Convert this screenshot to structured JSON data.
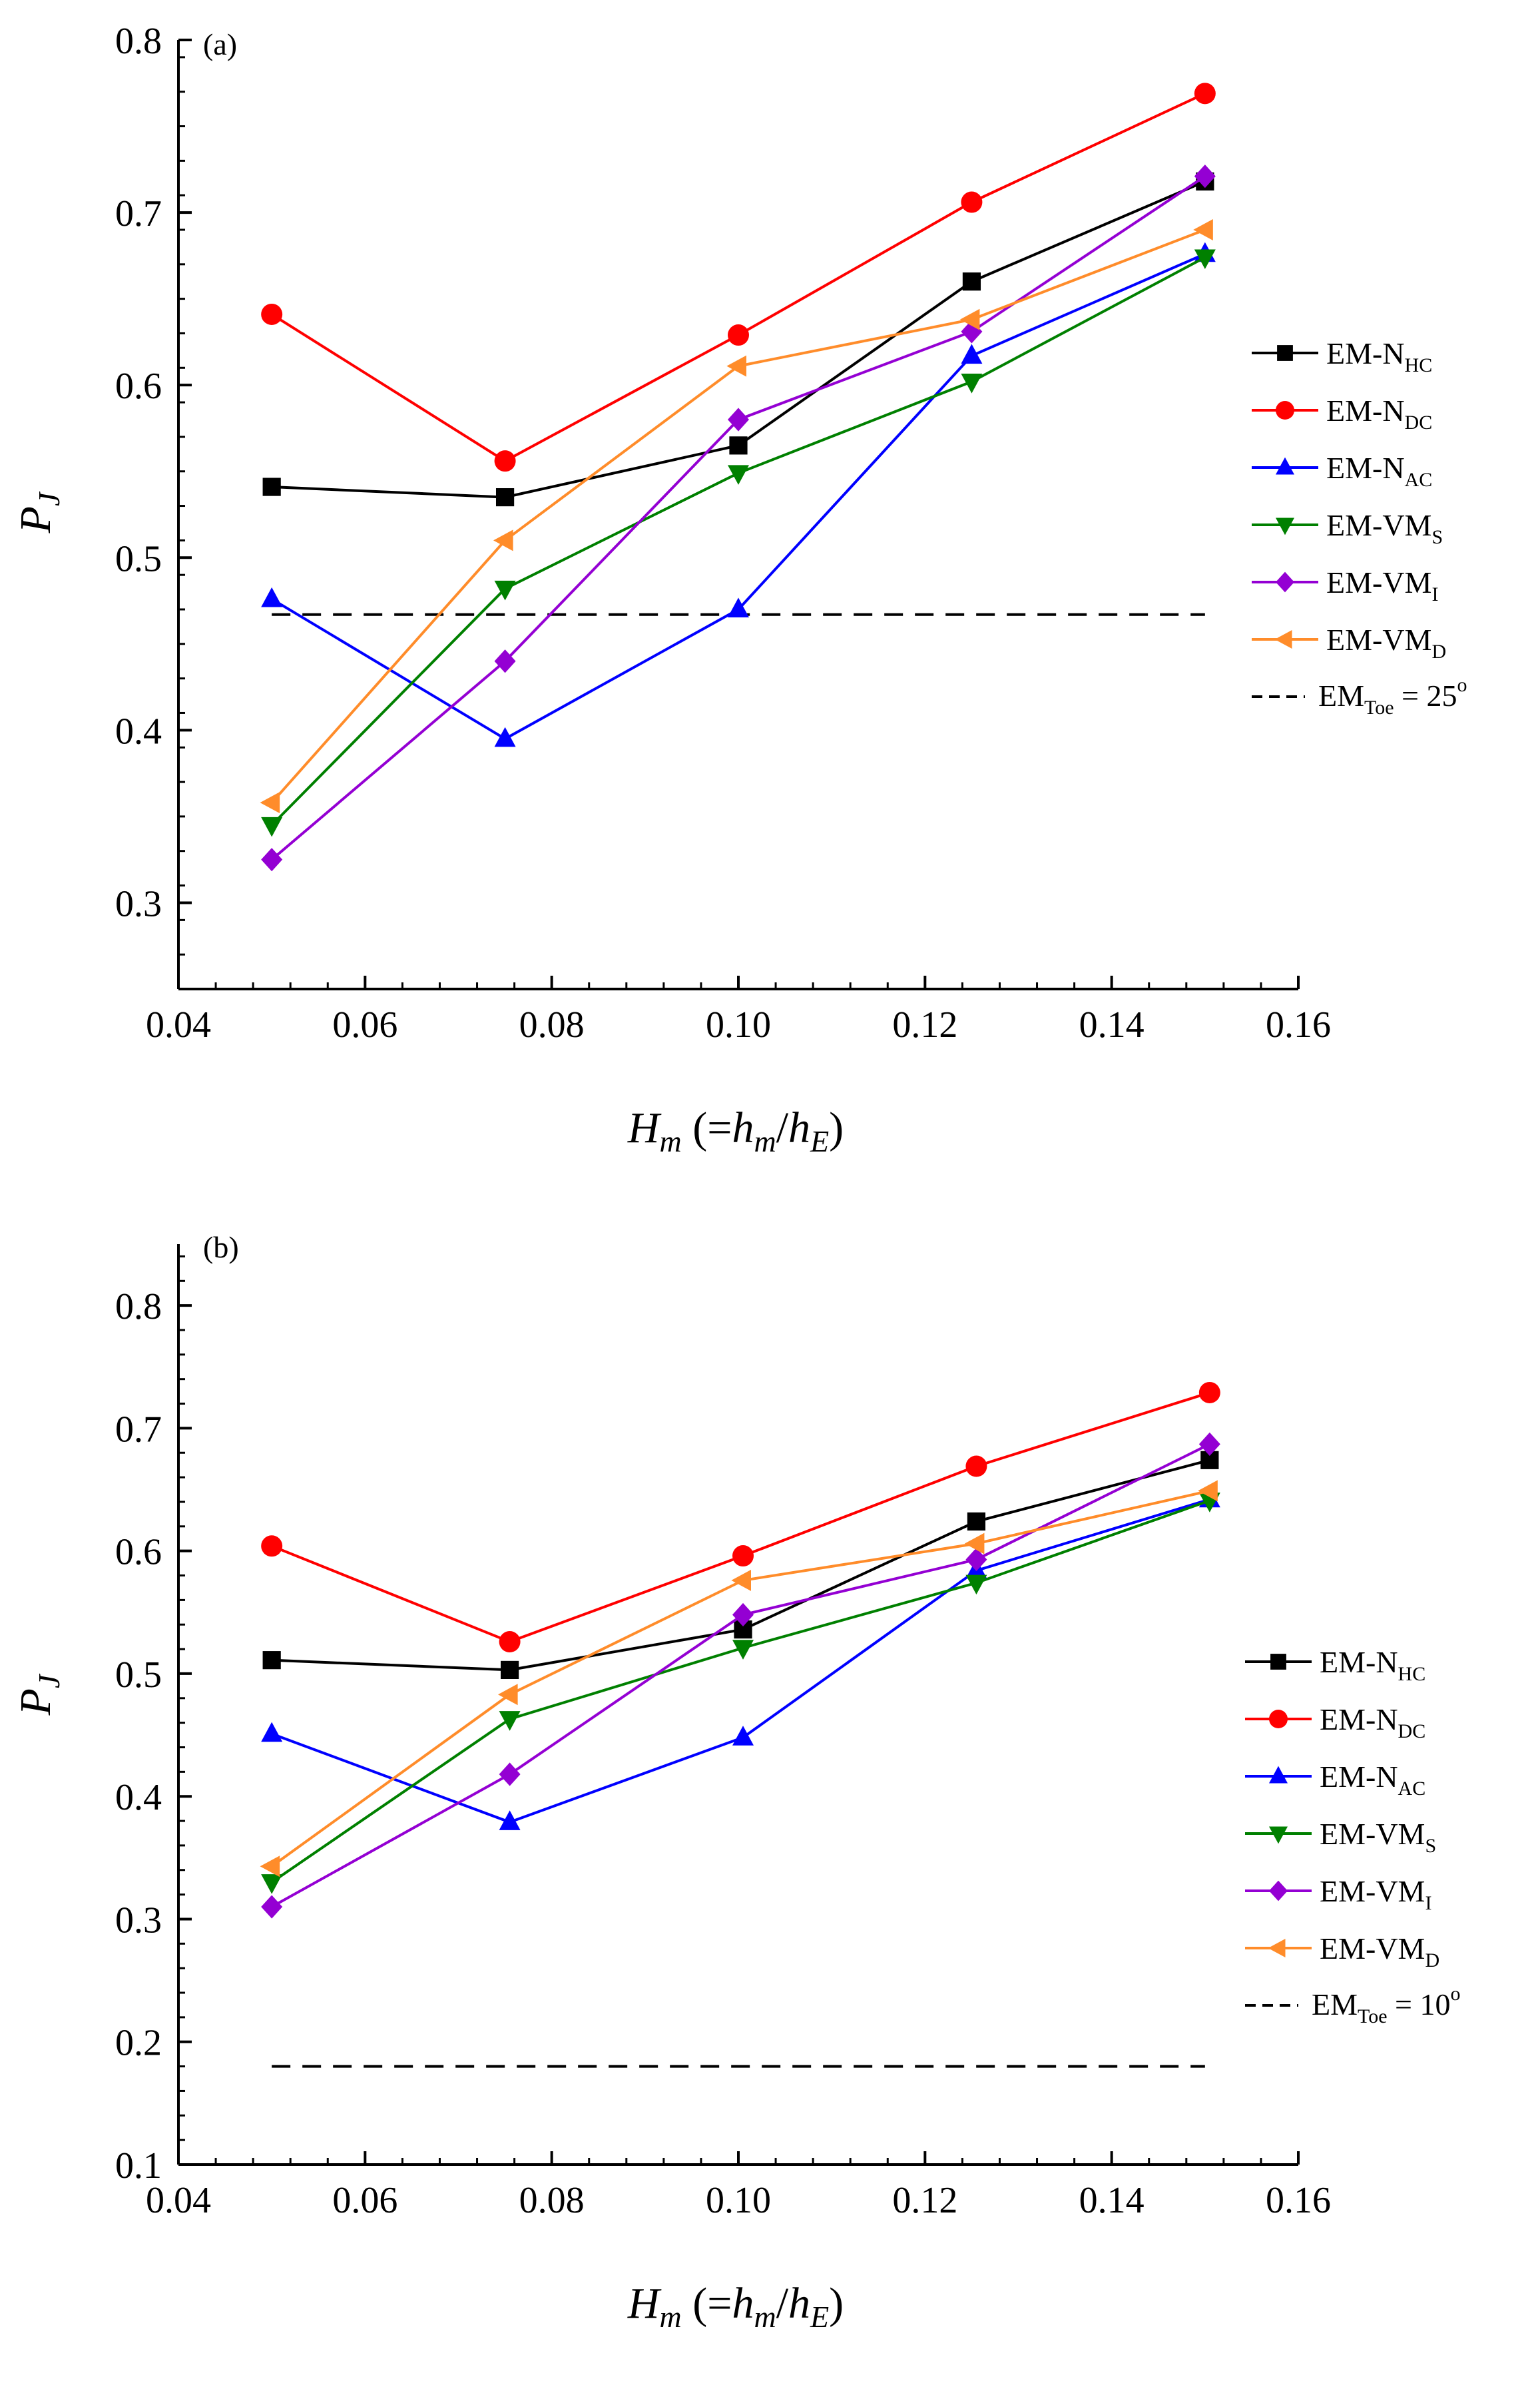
{
  "chart_data": [
    {
      "panel": "(a)",
      "type": "line",
      "xlabel": "Hm (=hm/hE)",
      "ylabel": "PJ",
      "xlim": [
        0.04,
        0.16
      ],
      "ylim": [
        0.25,
        0.8
      ],
      "xticks": [
        "0.04",
        "0.06",
        "0.08",
        "0.10",
        "0.12",
        "0.14",
        "0.16"
      ],
      "yticks": [
        "0.3",
        "0.4",
        "0.5",
        "0.6",
        "0.7",
        "0.8"
      ],
      "legend_position": "right",
      "series": [
        {
          "name": "EM-NHC",
          "label_main": "EM-N",
          "label_sub": "HC",
          "color": "#000000",
          "marker": "square",
          "points": [
            [
              0.05,
              0.541
            ],
            [
              0.075,
              0.535
            ],
            [
              0.1,
              0.565
            ],
            [
              0.125,
              0.66
            ],
            [
              0.15,
              0.718
            ]
          ]
        },
        {
          "name": "EM-NDC",
          "label_main": "EM-N",
          "label_sub": "DC",
          "color": "#ff0000",
          "marker": "circle",
          "points": [
            [
              0.05,
              0.641
            ],
            [
              0.075,
              0.556
            ],
            [
              0.1,
              0.629
            ],
            [
              0.125,
              0.706
            ],
            [
              0.15,
              0.769
            ]
          ]
        },
        {
          "name": "EM-NAC",
          "label_main": "EM-N",
          "label_sub": "AC",
          "color": "#0000ff",
          "marker": "triangle-up",
          "points": [
            [
              0.05,
              0.476
            ],
            [
              0.075,
              0.395
            ],
            [
              0.1,
              0.47
            ],
            [
              0.125,
              0.617
            ],
            [
              0.15,
              0.676
            ]
          ]
        },
        {
          "name": "EM-VMS",
          "label_main": "EM-VM",
          "label_sub": "S",
          "color": "#008000",
          "marker": "triangle-down",
          "points": [
            [
              0.05,
              0.345
            ],
            [
              0.075,
              0.482
            ],
            [
              0.1,
              0.549
            ],
            [
              0.125,
              0.602
            ],
            [
              0.15,
              0.674
            ]
          ]
        },
        {
          "name": "EM-VMI",
          "label_main": "EM-VM",
          "label_sub": "I",
          "color": "#9400d3",
          "marker": "diamond",
          "points": [
            [
              0.05,
              0.325
            ],
            [
              0.075,
              0.44
            ],
            [
              0.1,
              0.58
            ],
            [
              0.125,
              0.631
            ],
            [
              0.15,
              0.721
            ]
          ]
        },
        {
          "name": "EM-VMD",
          "label_main": "EM-VM",
          "label_sub": "D",
          "color": "#ff8c2a",
          "marker": "triangle-left",
          "points": [
            [
              0.05,
              0.358
            ],
            [
              0.075,
              0.51
            ],
            [
              0.1,
              0.611
            ],
            [
              0.125,
              0.638
            ],
            [
              0.15,
              0.69
            ]
          ]
        }
      ],
      "reference_line": {
        "value": 0.467,
        "x": [
          0.05,
          0.15
        ],
        "style": "dashed",
        "label_main": "EM",
        "label_sub": "Toe",
        "label_rest": " = 25",
        "label_sup": "o"
      }
    },
    {
      "panel": "(b)",
      "type": "line",
      "xlabel": "Hm (=hm/hE)",
      "ylabel": "PJ",
      "xlim": [
        0.04,
        0.16
      ],
      "ylim": [
        0.1,
        0.85
      ],
      "xticks": [
        "0.04",
        "0.06",
        "0.08",
        "0.10",
        "0.12",
        "0.14",
        "0.16"
      ],
      "yticks": [
        "0.1",
        "0.2",
        "0.3",
        "0.4",
        "0.5",
        "0.6",
        "0.7",
        "0.8"
      ],
      "legend_position": "right",
      "series": [
        {
          "name": "EM-NHC",
          "label_main": "EM-N",
          "label_sub": "HC",
          "color": "#000000",
          "marker": "square",
          "points": [
            [
              0.05,
              0.511
            ],
            [
              0.0755,
              0.503
            ],
            [
              0.1005,
              0.536
            ],
            [
              0.1255,
              0.624
            ],
            [
              0.1505,
              0.674
            ]
          ]
        },
        {
          "name": "EM-NDC",
          "label_main": "EM-N",
          "label_sub": "DC",
          "color": "#ff0000",
          "marker": "circle",
          "points": [
            [
              0.05,
              0.604
            ],
            [
              0.0755,
              0.526
            ],
            [
              0.1005,
              0.596
            ],
            [
              0.1255,
              0.669
            ],
            [
              0.1505,
              0.729
            ]
          ]
        },
        {
          "name": "EM-NAC",
          "label_main": "EM-N",
          "label_sub": "AC",
          "color": "#0000ff",
          "marker": "triangle-up",
          "points": [
            [
              0.05,
              0.451
            ],
            [
              0.0755,
              0.379
            ],
            [
              0.1005,
              0.448
            ],
            [
              0.1255,
              0.584
            ],
            [
              0.1505,
              0.642
            ]
          ]
        },
        {
          "name": "EM-VMS",
          "label_main": "EM-VM",
          "label_sub": "S",
          "color": "#008000",
          "marker": "triangle-down",
          "points": [
            [
              0.05,
              0.33
            ],
            [
              0.0755,
              0.463
            ],
            [
              0.1005,
              0.521
            ],
            [
              0.1255,
              0.574
            ],
            [
              0.1505,
              0.641
            ]
          ]
        },
        {
          "name": "EM-VMI",
          "label_main": "EM-VM",
          "label_sub": "I",
          "color": "#9400d3",
          "marker": "diamond",
          "points": [
            [
              0.05,
              0.31
            ],
            [
              0.0755,
              0.418
            ],
            [
              0.1005,
              0.548
            ],
            [
              0.1255,
              0.593
            ],
            [
              0.1505,
              0.687
            ]
          ]
        },
        {
          "name": "EM-VMD",
          "label_main": "EM-VM",
          "label_sub": "D",
          "color": "#ff8c2a",
          "marker": "triangle-left",
          "points": [
            [
              0.05,
              0.343
            ],
            [
              0.0755,
              0.483
            ],
            [
              0.1005,
              0.576
            ],
            [
              0.1255,
              0.606
            ],
            [
              0.1505,
              0.649
            ]
          ]
        }
      ],
      "reference_line": {
        "value": 0.18,
        "x": [
          0.05,
          0.15
        ],
        "style": "dashed",
        "label_main": "EM",
        "label_sub": "Toe",
        "label_rest": " = 10",
        "label_sup": "o"
      }
    }
  ]
}
